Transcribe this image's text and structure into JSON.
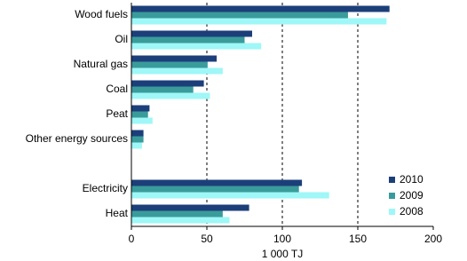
{
  "chart_data": {
    "type": "barh",
    "categories": [
      "Wood fuels",
      "Oil",
      "Natural gas",
      "Coal",
      "Peat",
      "Other energy sources",
      null,
      "Electricity",
      "Heat"
    ],
    "series": [
      {
        "name": "2010",
        "color": "#1c3f7a",
        "values": [
          171,
          80,
          56.5,
          48,
          12,
          8,
          null,
          113,
          78
        ]
      },
      {
        "name": "2009",
        "color": "#3a9b9b",
        "values": [
          143.5,
          75,
          50.5,
          41,
          11,
          8,
          null,
          111,
          60.5
        ]
      },
      {
        "name": "2008",
        "color": "#9ff7f7",
        "values": [
          169,
          86,
          60.5,
          52,
          14,
          7,
          null,
          131,
          65
        ]
      }
    ],
    "xlabel": "1 000 TJ",
    "xlim": [
      0,
      200
    ],
    "xticks": [
      0,
      50,
      100,
      150,
      200
    ],
    "grid": true,
    "legend": "lower right"
  }
}
